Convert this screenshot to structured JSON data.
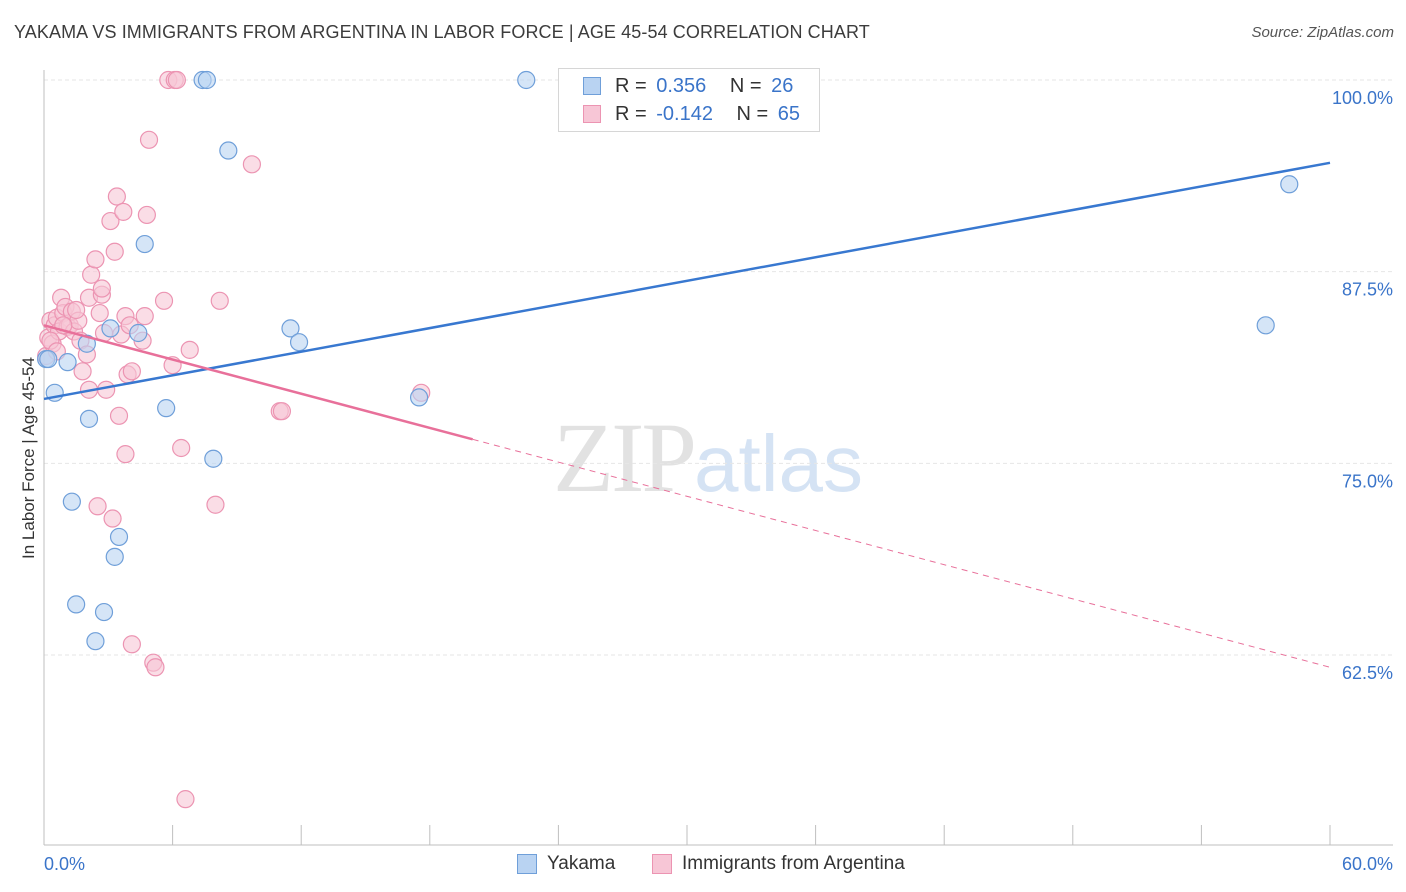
{
  "title": "YAKAMA VS IMMIGRANTS FROM ARGENTINA IN LABOR FORCE | AGE 45-54 CORRELATION CHART",
  "source": "Source: ZipAtlas.com",
  "watermark": {
    "zip": "ZIP",
    "atlas": "atlas"
  },
  "stats": {
    "rows": [
      {
        "r_label": "R =",
        "r_value": "0.356",
        "n_label": "N =",
        "n_value": "26"
      },
      {
        "r_label": "R =",
        "r_value": "-0.142",
        "n_label": "N =",
        "n_value": "65"
      }
    ]
  },
  "colors": {
    "yakama_fill": "#b9d3f2",
    "yakama_stroke": "#6f9fd9",
    "yakama_line": "#3878d0",
    "arg_fill": "#f7c6d6",
    "arg_stroke": "#ec94b2",
    "arg_line": "#e8709a",
    "grid": "#e6e6e6",
    "axis_text": "#3a74c9"
  },
  "chart_data": {
    "type": "scatter",
    "title": "YAKAMA VS IMMIGRANTS FROM ARGENTINA IN LABOR FORCE | AGE 45-54 CORRELATION CHART",
    "xlabel": "",
    "ylabel": "In Labor Force | Age 45-54",
    "xlim": [
      0,
      60
    ],
    "ylim": [
      52,
      102
    ],
    "x_tick_labels": [
      "0.0%",
      "60.0%"
    ],
    "y_ticks": [
      62.5,
      75.0,
      87.5,
      100.0
    ],
    "y_tick_labels": [
      "62.5%",
      "75.0%",
      "87.5%",
      "100.0%"
    ],
    "legend": [
      "Yakama",
      "Immigrants from Argentina"
    ],
    "series": [
      {
        "name": "Yakama",
        "r": 0.356,
        "n": 26,
        "trend": {
          "x": [
            0,
            60
          ],
          "y": [
            79.2,
            94.6
          ],
          "dashed_from": null
        },
        "points": [
          [
            0.1,
            81.8
          ],
          [
            0.5,
            79.6
          ],
          [
            1.1,
            81.6
          ],
          [
            1.3,
            72.5
          ],
          [
            1.5,
            65.8
          ],
          [
            2.1,
            77.9
          ],
          [
            2.0,
            82.8
          ],
          [
            2.4,
            63.4
          ],
          [
            2.8,
            65.3
          ],
          [
            3.1,
            83.8
          ],
          [
            3.3,
            68.9
          ],
          [
            3.5,
            70.2
          ],
          [
            4.4,
            83.5
          ],
          [
            4.7,
            89.3
          ],
          [
            5.7,
            78.6
          ],
          [
            7.4,
            100.0
          ],
          [
            7.6,
            100.0
          ],
          [
            7.9,
            75.3
          ],
          [
            8.6,
            95.4
          ],
          [
            11.5,
            83.8
          ],
          [
            11.9,
            82.9
          ],
          [
            17.5,
            79.3
          ],
          [
            22.5,
            100.0
          ],
          [
            57.0,
            84.0
          ],
          [
            58.1,
            93.2
          ],
          [
            0.2,
            81.8
          ]
        ]
      },
      {
        "name": "Immigrants from Argentina",
        "r": -0.142,
        "n": 65,
        "trend": {
          "x": [
            0,
            60
          ],
          "y": [
            84.0,
            61.7
          ],
          "dashed_from": 20.0
        },
        "points": [
          [
            0.1,
            82.0
          ],
          [
            0.2,
            83.2
          ],
          [
            0.3,
            84.3
          ],
          [
            0.4,
            82.8
          ],
          [
            0.5,
            84.0
          ],
          [
            0.6,
            84.5
          ],
          [
            0.7,
            83.6
          ],
          [
            0.8,
            85.8
          ],
          [
            0.9,
            84.8
          ],
          [
            1.0,
            85.2
          ],
          [
            1.1,
            83.9
          ],
          [
            1.2,
            84.0
          ],
          [
            1.3,
            84.9
          ],
          [
            1.4,
            83.6
          ],
          [
            1.6,
            84.3
          ],
          [
            1.7,
            83.0
          ],
          [
            1.8,
            81.0
          ],
          [
            2.0,
            82.1
          ],
          [
            2.1,
            79.8
          ],
          [
            2.1,
            85.8
          ],
          [
            2.2,
            87.3
          ],
          [
            2.4,
            88.3
          ],
          [
            2.5,
            72.2
          ],
          [
            2.6,
            84.8
          ],
          [
            2.7,
            86.0
          ],
          [
            2.7,
            86.4
          ],
          [
            2.9,
            79.8
          ],
          [
            3.1,
            90.8
          ],
          [
            3.2,
            71.4
          ],
          [
            3.3,
            88.8
          ],
          [
            3.4,
            92.4
          ],
          [
            3.5,
            78.1
          ],
          [
            3.6,
            83.4
          ],
          [
            3.7,
            91.4
          ],
          [
            3.8,
            84.6
          ],
          [
            3.8,
            75.6
          ],
          [
            3.9,
            80.8
          ],
          [
            4.0,
            84.0
          ],
          [
            4.1,
            81.0
          ],
          [
            4.1,
            63.2
          ],
          [
            4.6,
            83.0
          ],
          [
            4.7,
            84.6
          ],
          [
            4.8,
            91.2
          ],
          [
            4.9,
            96.1
          ],
          [
            5.1,
            62.0
          ],
          [
            5.2,
            61.7
          ],
          [
            5.6,
            85.6
          ],
          [
            5.8,
            100.0
          ],
          [
            6.0,
            81.4
          ],
          [
            6.1,
            100.0
          ],
          [
            6.2,
            100.0
          ],
          [
            6.4,
            76.0
          ],
          [
            6.6,
            53.1
          ],
          [
            6.8,
            82.4
          ],
          [
            8.0,
            72.3
          ],
          [
            8.2,
            85.6
          ],
          [
            9.7,
            94.5
          ],
          [
            11.0,
            78.4
          ],
          [
            11.1,
            78.4
          ],
          [
            17.6,
            79.6
          ],
          [
            0.3,
            83.0
          ],
          [
            0.9,
            84.0
          ],
          [
            1.5,
            85.0
          ],
          [
            0.6,
            82.3
          ],
          [
            2.8,
            83.5
          ]
        ]
      }
    ]
  },
  "axes": {
    "y_axis_label": "In Labor Force | Age 45-54",
    "x_min_label": "0.0%",
    "x_max_label": "60.0%"
  }
}
